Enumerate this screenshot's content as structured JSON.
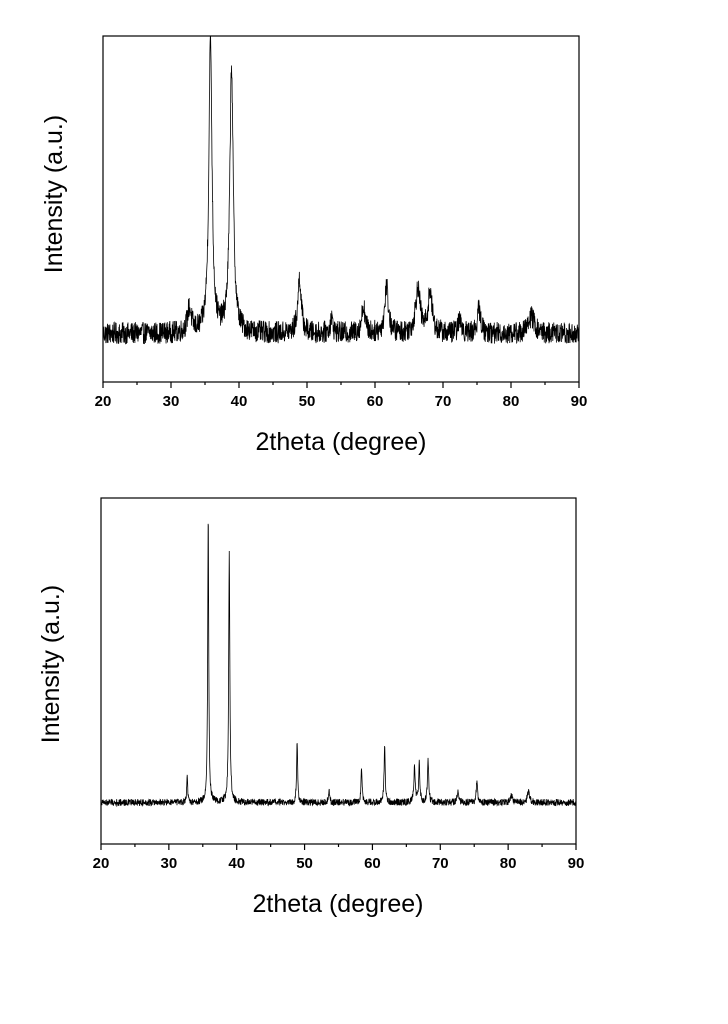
{
  "chart_data": [
    {
      "type": "line",
      "title": "",
      "xlabel": "2theta (degree)",
      "ylabel": "Intensity (a.u.)",
      "xlim": [
        20,
        90
      ],
      "xticks": [
        "20",
        "30",
        "40",
        "50",
        "60",
        "70",
        "80",
        "90"
      ],
      "ylim": [
        0,
        100
      ],
      "grid": false,
      "legend": "none",
      "line_color": "#000000",
      "baseline": 14,
      "noise": 3.2,
      "peaks": [
        {
          "x": 32.7,
          "height": 7,
          "width": 0.7
        },
        {
          "x": 35.8,
          "height": 86,
          "width": 0.55
        },
        {
          "x": 38.9,
          "height": 77,
          "width": 0.6
        },
        {
          "x": 48.9,
          "height": 16,
          "width": 0.6
        },
        {
          "x": 53.6,
          "height": 4,
          "width": 0.5
        },
        {
          "x": 58.3,
          "height": 8,
          "width": 0.6
        },
        {
          "x": 61.7,
          "height": 14,
          "width": 0.6
        },
        {
          "x": 66.3,
          "height": 13,
          "width": 0.8
        },
        {
          "x": 68.1,
          "height": 12,
          "width": 0.7
        },
        {
          "x": 72.5,
          "height": 4,
          "width": 0.6
        },
        {
          "x": 75.3,
          "height": 7,
          "width": 0.6
        },
        {
          "x": 83.0,
          "height": 5,
          "width": 1.0
        }
      ]
    },
    {
      "type": "line",
      "title": "",
      "xlabel": "2theta (degree)",
      "ylabel": "Intensity (a.u.)",
      "xlim": [
        20,
        90
      ],
      "xticks": [
        "20",
        "30",
        "40",
        "50",
        "60",
        "70",
        "80",
        "90"
      ],
      "ylim": [
        0,
        100
      ],
      "grid": false,
      "legend": "none",
      "line_color": "#000000",
      "baseline": 12,
      "noise": 1.0,
      "peaks": [
        {
          "x": 32.7,
          "height": 8,
          "width": 0.15
        },
        {
          "x": 35.8,
          "height": 83,
          "width": 0.18
        },
        {
          "x": 38.9,
          "height": 72,
          "width": 0.2
        },
        {
          "x": 48.9,
          "height": 18,
          "width": 0.18
        },
        {
          "x": 53.6,
          "height": 4,
          "width": 0.18
        },
        {
          "x": 58.4,
          "height": 10,
          "width": 0.2
        },
        {
          "x": 61.8,
          "height": 16,
          "width": 0.2
        },
        {
          "x": 66.2,
          "height": 10,
          "width": 0.25
        },
        {
          "x": 66.9,
          "height": 11,
          "width": 0.22
        },
        {
          "x": 68.2,
          "height": 12,
          "width": 0.22
        },
        {
          "x": 72.6,
          "height": 4,
          "width": 0.25
        },
        {
          "x": 75.4,
          "height": 6,
          "width": 0.25
        },
        {
          "x": 80.5,
          "height": 2,
          "width": 0.3
        },
        {
          "x": 83.0,
          "height": 3,
          "width": 0.4
        }
      ]
    }
  ]
}
